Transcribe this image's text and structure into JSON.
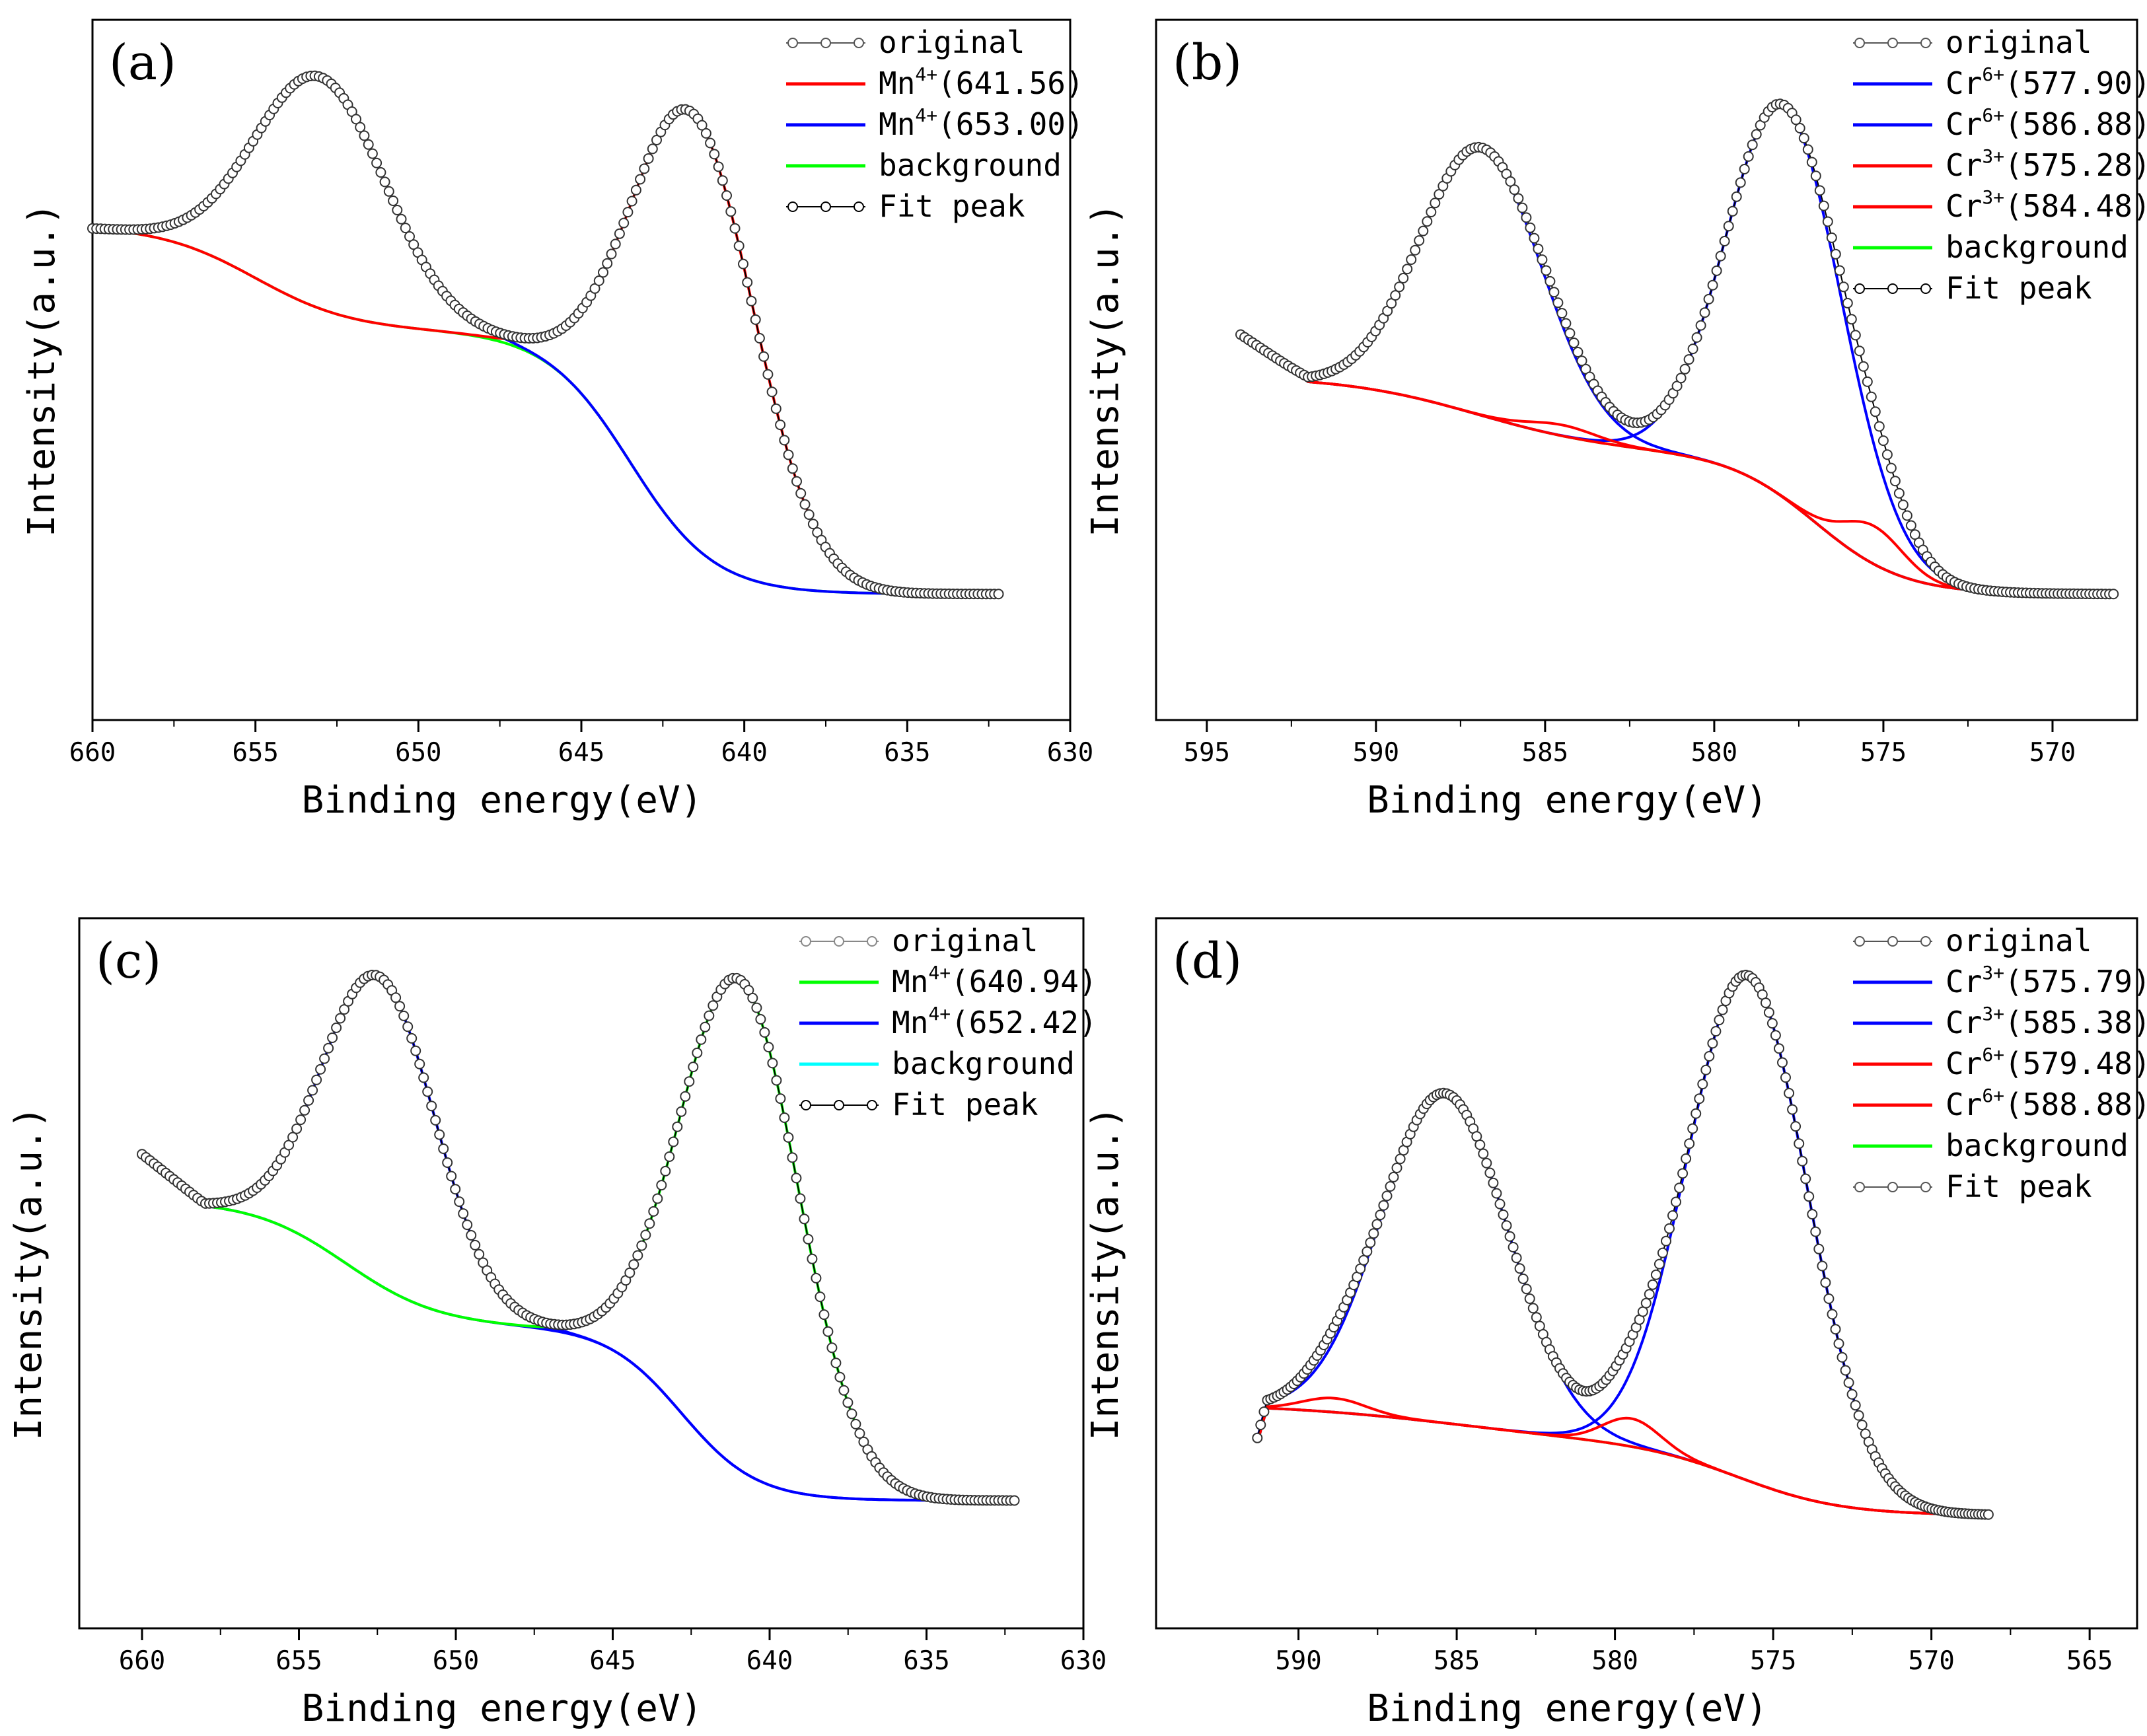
{
  "chart_data": [
    {
      "panel_label": "(a)",
      "type": "line",
      "xlabel": "Binding energy(eV)",
      "ylabel": "Intensity(a.u.)",
      "xlim": [
        660,
        630
      ],
      "ylim": [
        0,
        1
      ],
      "x_ticks": [
        "660",
        "655",
        "650",
        "645",
        "640",
        "635",
        "630"
      ],
      "grid": false,
      "legend_position": "top-right",
      "legend": [
        {
          "label": "original",
          "style": "line-marker",
          "color": "#555555"
        },
        {
          "label": "Mn",
          "sup": "4+",
          "value": "(641.56)",
          "style": "line",
          "color": "#ff0000"
        },
        {
          "label": "Mn",
          "sup": "4+",
          "value": "(653.00)",
          "style": "line",
          "color": "#0000ff"
        },
        {
          "label": "background",
          "style": "line",
          "color": "#00ff00"
        },
        {
          "label": "Fit peak",
          "style": "line-marker",
          "color": "#000000"
        }
      ],
      "x_start": 660,
      "x_end": 632.2,
      "background_sigmoids": [
        [
          1.0,
          -0.2,
          655,
          1.5
        ],
        [
          1.0,
          -0.5,
          643.5,
          1.3
        ]
      ],
      "peaks": [
        {
          "center": 641.56,
          "height": 0.82,
          "width": 1.9,
          "color": "#ff0000"
        },
        {
          "center": 653.0,
          "height": 0.44,
          "width": 2.0,
          "color": "#0000ff"
        }
      ],
      "bg_color": "#00ff00",
      "tail": []
    },
    {
      "panel_label": "(b)",
      "type": "line",
      "xlabel": "Binding energy(eV)",
      "ylabel": "Intensity(a.u.)",
      "xlim": [
        596.5,
        567.5
      ],
      "ylim": [
        0,
        1
      ],
      "x_ticks": [
        "595",
        "590",
        "585",
        "580",
        "575",
        "570"
      ],
      "grid": false,
      "legend_position": "top-right",
      "legend": [
        {
          "label": "original",
          "style": "line-marker",
          "color": "#555555"
        },
        {
          "label": "Cr",
          "sup": "6+",
          "value": "(577.90)",
          "style": "line",
          "color": "#0000ff"
        },
        {
          "label": "Cr",
          "sup": "6+",
          "value": "(586.88)",
          "style": "line",
          "color": "#0000ff"
        },
        {
          "label": "Cr",
          "sup": "3+",
          "value": "(575.28)",
          "style": "line",
          "color": "#ff0000"
        },
        {
          "label": "Cr",
          "sup": "3+",
          "value": "(584.48)",
          "style": "line",
          "color": "#ff0000"
        },
        {
          "label": "background",
          "style": "line",
          "color": "#00ff00"
        },
        {
          "label": "Fit peak",
          "style": "line-marker",
          "color": "#000000"
        }
      ],
      "x_start": 594,
      "x_end": 568.2,
      "background_sigmoids": [
        [
          0.38,
          -0.14,
          587,
          2.0
        ],
        [
          0.38,
          -0.26,
          577,
          1.3
        ]
      ],
      "peaks": [
        {
          "center": 577.9,
          "height": 0.72,
          "width": 1.7,
          "color": "#0000ff"
        },
        {
          "center": 586.88,
          "height": 0.49,
          "width": 1.8,
          "color": "#0000ff"
        },
        {
          "center": 575.28,
          "height": 0.07,
          "width": 0.9,
          "color": "#ff0000"
        },
        {
          "center": 584.48,
          "height": 0.02,
          "width": 1.0,
          "color": "#ff0000"
        }
      ],
      "bg_color": "#00ff00",
      "tail": [
        [
          594,
          0.08
        ],
        [
          593,
          0.04
        ],
        [
          592,
          0.0
        ]
      ]
    },
    {
      "panel_label": "(c)",
      "type": "line",
      "xlabel": "Binding energy(eV)",
      "ylabel": "Intensity(a.u.)",
      "xlim": [
        662,
        630
      ],
      "ylim": [
        0,
        1
      ],
      "x_ticks": [
        "660",
        "655",
        "650",
        "645",
        "640",
        "635",
        "630"
      ],
      "grid": false,
      "legend_position": "top-right",
      "legend": [
        {
          "label": "original",
          "style": "line-marker",
          "color": "#888888"
        },
        {
          "label": "Mn",
          "sup": "4+",
          "value": "(640.94)",
          "style": "line",
          "color": "#00ff00"
        },
        {
          "label": "Mn",
          "sup": "4+",
          "value": "(652.42)",
          "style": "line",
          "color": "#0000ff"
        },
        {
          "label": "background",
          "style": "line",
          "color": "#00ffff"
        },
        {
          "label": "Fit peak",
          "style": "line-marker",
          "color": "#000000"
        }
      ],
      "x_start": 660,
      "x_end": 632.2,
      "background_sigmoids": [
        [
          0.42,
          -0.16,
          653.5,
          1.5
        ],
        [
          0.42,
          -0.22,
          642.8,
          1.2
        ]
      ],
      "peaks": [
        {
          "center": 640.94,
          "height": 0.62,
          "width": 1.9,
          "color": "#00ff00"
        },
        {
          "center": 652.42,
          "height": 0.39,
          "width": 1.8,
          "color": "#0000ff"
        }
      ],
      "bg_color": "#0000ff",
      "tail": [
        [
          660,
          0.06
        ],
        [
          659,
          0.03
        ],
        [
          658,
          0.0
        ]
      ]
    },
    {
      "panel_label": "(d)",
      "type": "line",
      "xlabel": "Binding energy(eV)",
      "ylabel": "Intensity(a.u.)",
      "xlim": [
        594.5,
        563.5
      ],
      "ylim": [
        0,
        1
      ],
      "x_ticks": [
        "590",
        "585",
        "580",
        "575",
        "570",
        "565"
      ],
      "grid": false,
      "legend_position": "top-right",
      "legend": [
        {
          "label": "original",
          "style": "line-marker",
          "color": "#555555"
        },
        {
          "label": "Cr",
          "sup": "3+",
          "value": "(575.79)",
          "style": "line",
          "color": "#0000ff"
        },
        {
          "label": "Cr",
          "sup": "3+",
          "value": "(585.38)",
          "style": "line",
          "color": "#0000ff"
        },
        {
          "label": "Cr",
          "sup": "6+",
          "value": "(579.48)",
          "style": "line",
          "color": "#ff0000"
        },
        {
          "label": "Cr",
          "sup": "6+",
          "value": "(588.88)",
          "style": "line",
          "color": "#ff0000"
        },
        {
          "label": "background",
          "style": "line",
          "color": "#00ff00"
        },
        {
          "label": "Fit peak",
          "style": "line-marker",
          "color": "#555555"
        }
      ],
      "x_start": 591.3,
      "x_end": 568.2,
      "background_sigmoids": [
        [
          0.3,
          -0.06,
          585,
          3.0
        ],
        [
          0.3,
          -0.1,
          576,
          1.6
        ]
      ],
      "peaks": [
        {
          "center": 575.79,
          "height": 0.72,
          "width": 1.9,
          "color": "#0000ff"
        },
        {
          "center": 585.38,
          "height": 0.47,
          "width": 2.0,
          "color": "#0000ff"
        },
        {
          "center": 579.48,
          "height": 0.04,
          "width": 0.9,
          "color": "#ff0000"
        },
        {
          "center": 588.88,
          "height": 0.02,
          "width": 1.0,
          "color": "#ff0000"
        }
      ],
      "bg_color": "#00ff00",
      "tail": [
        [
          591.3,
          -0.05
        ],
        [
          591,
          -0.02
        ]
      ]
    }
  ]
}
